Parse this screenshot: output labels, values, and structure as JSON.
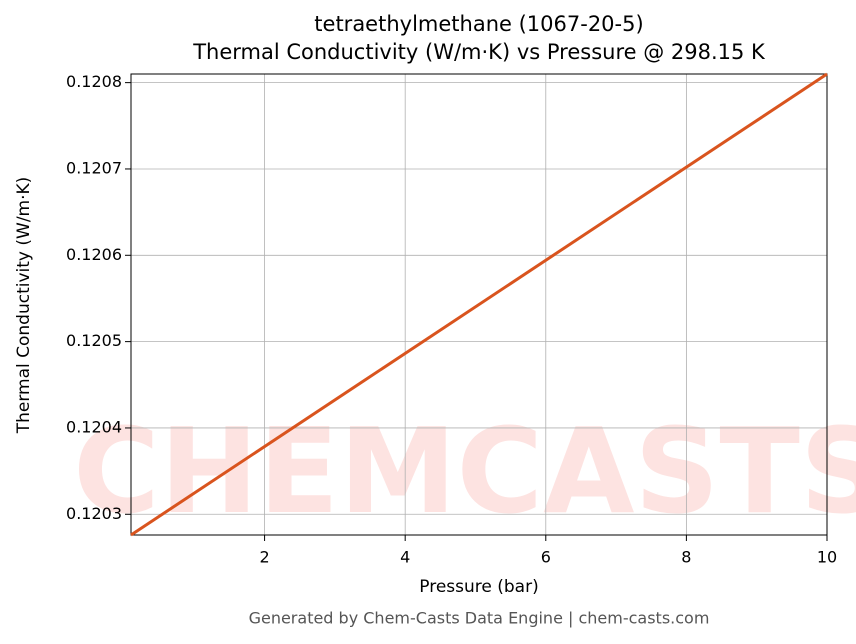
{
  "chart_data": {
    "type": "line",
    "title": "tetraethylmethane (1067-20-5)",
    "subtitle": "Thermal Conductivity (W/m·K) vs Pressure @ 298.15 K",
    "x_label": "Pressure (bar)",
    "y_label": "Thermal Conductivity (W/m·K)",
    "watermark": "CHEMCASTS",
    "footer": "Generated by Chem-Casts Data Engine | chem-casts.com",
    "x": [
      0.1,
      10
    ],
    "series": [
      {
        "name": "Thermal Conductivity",
        "color": "#d9541e",
        "values": [
          0.120276,
          0.12081
        ]
      }
    ],
    "xlim": [
      0.1,
      10
    ],
    "xticks": [
      2,
      4,
      6,
      8,
      10
    ],
    "ylim": [
      0.120276,
      0.12081
    ],
    "yticks": [
      0.1203,
      0.1204,
      0.1205,
      0.1206,
      0.1207,
      0.1208
    ],
    "grid": true
  }
}
